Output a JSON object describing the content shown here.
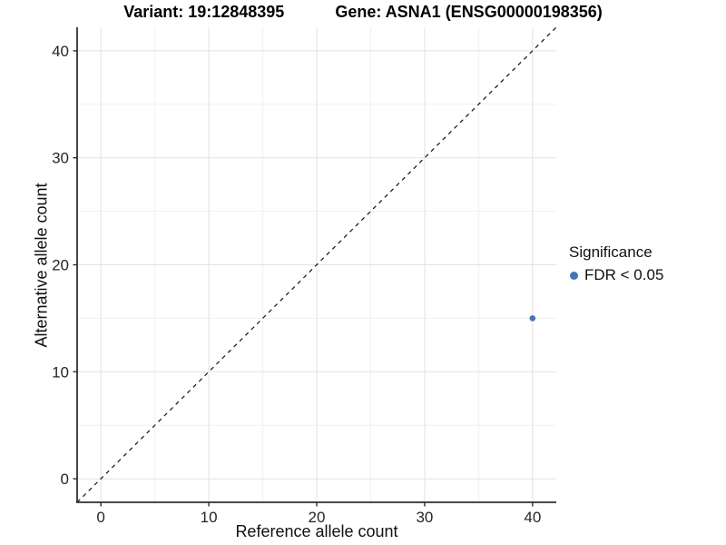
{
  "chart_data": {
    "type": "scatter",
    "title_left": "Variant: 19:12848395",
    "title_right": "Gene: ASNA1 (ENSG00000198356)",
    "xlabel": "Reference allele count",
    "ylabel": "Alternative allele count",
    "xlim": [
      -2.2,
      42.2
    ],
    "ylim": [
      -2.2,
      42.2
    ],
    "x_ticks": [
      0,
      10,
      20,
      30,
      40
    ],
    "y_ticks": [
      0,
      10,
      20,
      30,
      40
    ],
    "minor_x_ticks": [
      5,
      15,
      25,
      35
    ],
    "minor_y_ticks": [
      5,
      15,
      25,
      35
    ],
    "grid": {
      "major_color": "#e2e2e2",
      "minor_color": "#f0f0f0",
      "on": true
    },
    "identity_line": {
      "show": true,
      "slope": 1,
      "intercept": 0,
      "style": "dashed",
      "color": "#111111"
    },
    "series": [
      {
        "name": "FDR < 0.05",
        "color": "#4575b4",
        "points": [
          {
            "x": 40,
            "y": 15
          }
        ]
      }
    ],
    "legend": {
      "title": "Significance",
      "position": "right"
    },
    "axis_color": "#2f2f2f",
    "tick_label_color": "#262626"
  }
}
